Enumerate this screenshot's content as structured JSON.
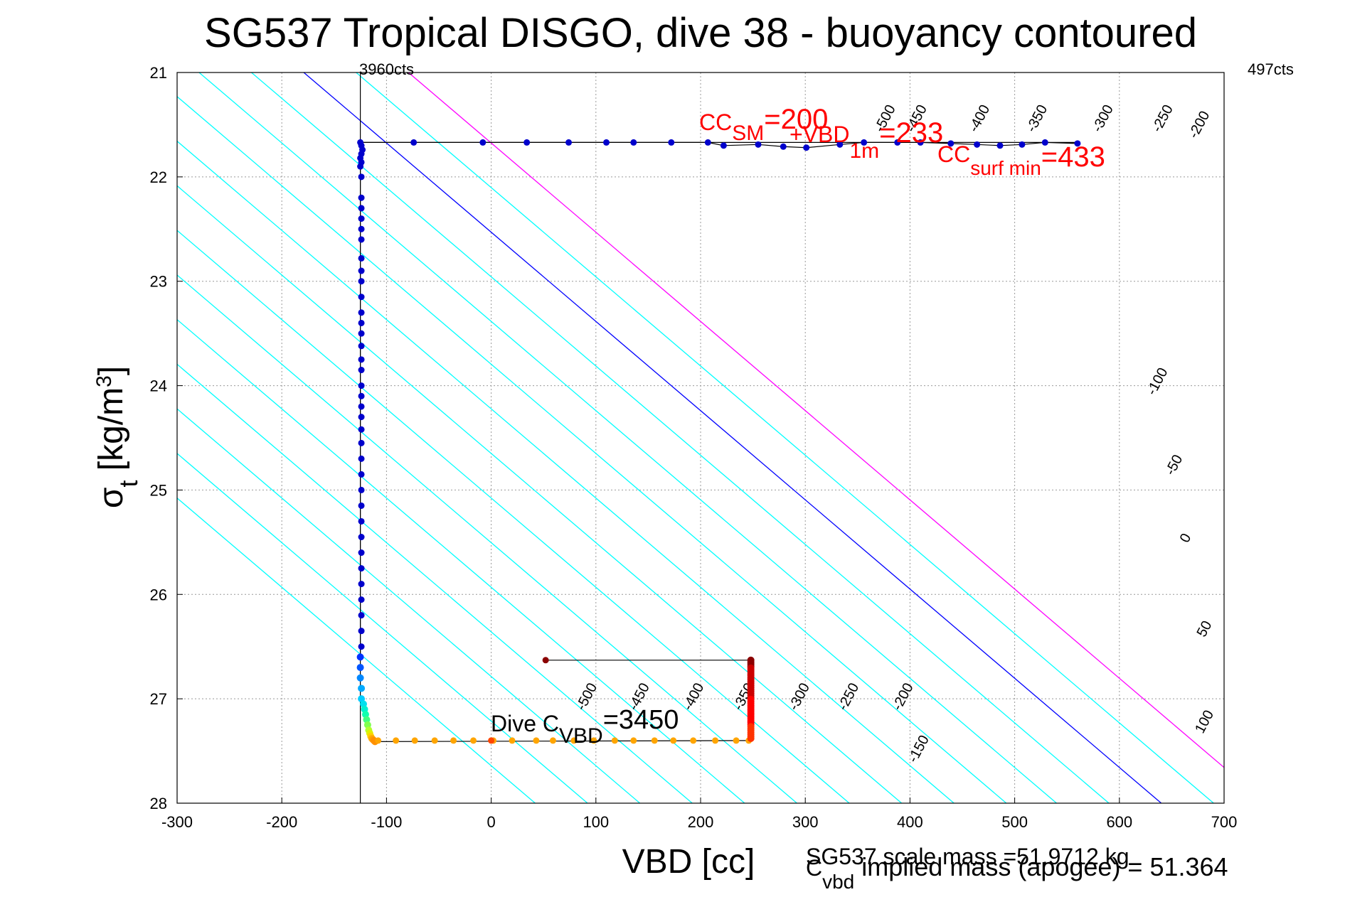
{
  "chart_data": {
    "type": "scatter",
    "title": "SG537 Tropical DISGO, dive 38 - buoyancy contoured",
    "xlabel": "VBD [cc]",
    "ylabel_main": "σ",
    "ylabel_sub": "t",
    "ylabel_units": " [kg/m",
    "ylabel_sup": "3",
    "ylabel_close": "]",
    "xlim": [
      -300,
      700
    ],
    "ylim": [
      21,
      28
    ],
    "y_reversed": true,
    "grid": true,
    "xticks": [
      "-300",
      "-200",
      "-100",
      "0",
      "100",
      "200",
      "300",
      "400",
      "500",
      "600",
      "700"
    ],
    "yticks": [
      "21",
      "22",
      "23",
      "24",
      "25",
      "26",
      "27",
      "28"
    ],
    "top_left_label": "3960cts",
    "top_right_label": "497cts",
    "vline_x": -125,
    "contours": [
      {
        "level": -600,
        "x28": 42,
        "color": "#00ffff"
      },
      {
        "level": -550,
        "x28": 92,
        "color": "#00ffff"
      },
      {
        "level": -500,
        "x28": 142,
        "color": "#00ffff",
        "label": "-500"
      },
      {
        "level": -450,
        "x28": 192,
        "color": "#00ffff",
        "label": "-450"
      },
      {
        "level": -400,
        "x28": 242,
        "color": "#00ffff",
        "label": "-400"
      },
      {
        "level": -350,
        "x28": 292,
        "color": "#00ffff",
        "label": "-350"
      },
      {
        "level": -300,
        "x28": 342,
        "color": "#00ffff",
        "label": "-300"
      },
      {
        "level": -250,
        "x28": 392,
        "color": "#00ffff",
        "label": "-250"
      },
      {
        "level": -200,
        "x28": 442,
        "color": "#00ffff",
        "label": "-200"
      },
      {
        "level": -150,
        "x28": 492,
        "color": "#00ffff",
        "label": "-150"
      },
      {
        "level": -100,
        "x28": 540,
        "color": "#00ffff"
      },
      {
        "level": -50,
        "x28": 590,
        "color": "#00ffff"
      },
      {
        "level": 0,
        "x28": 640,
        "color": "#0000ff"
      },
      {
        "level": 50,
        "x28": 690,
        "color": "#00ffff"
      },
      {
        "level": 100,
        "x28": 740,
        "color": "#ff00ff"
      }
    ],
    "contour_labels": [
      {
        "text": "-500",
        "x": 380,
        "y": 21.46
      },
      {
        "text": "-450",
        "x": 410,
        "y": 21.46
      },
      {
        "text": "-400",
        "x": 470,
        "y": 21.46
      },
      {
        "text": "-350",
        "x": 525,
        "y": 21.46
      },
      {
        "text": "-300",
        "x": 588,
        "y": 21.46
      },
      {
        "text": "-250",
        "x": 645,
        "y": 21.46
      },
      {
        "text": "-200",
        "x": 680,
        "y": 21.52
      },
      {
        "text": "-100",
        "x": 640,
        "y": 23.98
      },
      {
        "text": "-50",
        "x": 656,
        "y": 24.78
      },
      {
        "text": "0",
        "x": 667,
        "y": 25.48
      },
      {
        "text": "50",
        "x": 685,
        "y": 26.35
      },
      {
        "text": "100",
        "x": 685,
        "y": 27.24
      },
      {
        "text": "-500",
        "x": 95,
        "y": 27.0
      },
      {
        "text": "-450",
        "x": 145,
        "y": 27.0
      },
      {
        "text": "-400",
        "x": 197,
        "y": 27.0
      },
      {
        "text": "-350",
        "x": 245,
        "y": 27.0
      },
      {
        "text": "-300",
        "x": 298,
        "y": 27.0
      },
      {
        "text": "-250",
        "x": 345,
        "y": 27.0
      },
      {
        "text": "-200",
        "x": 397,
        "y": 27.0
      },
      {
        "text": "-150",
        "x": 412,
        "y": 27.5
      }
    ],
    "series": [
      {
        "color": "#0000cc",
        "x": [
          -125,
          -124,
          -123,
          -124,
          -125,
          -124,
          -125,
          -124,
          -124,
          -124,
          -124,
          -124,
          -124,
          -124,
          -124,
          -124,
          -124,
          -124,
          -124,
          -124,
          -124,
          -124,
          -124,
          -124,
          -124,
          -124,
          -124,
          -124,
          -124,
          -124,
          -124,
          -124,
          -124,
          -124,
          -124,
          -124,
          -124,
          -124,
          -124,
          -124,
          -124,
          -124
        ],
        "y": [
          21.67,
          21.7,
          21.74,
          21.78,
          21.82,
          21.86,
          21.9,
          22.0,
          22.2,
          22.3,
          22.4,
          22.5,
          22.6,
          22.78,
          22.9,
          23.0,
          23.15,
          23.3,
          23.4,
          23.5,
          23.62,
          23.75,
          23.85,
          24.0,
          24.1,
          24.2,
          24.3,
          24.42,
          24.55,
          24.7,
          24.85,
          25.0,
          25.15,
          25.3,
          25.45,
          25.6,
          25.75,
          25.9,
          26.05,
          26.2,
          26.35,
          26.5
        ]
      },
      {
        "color": "#0000cc",
        "x": [
          -74,
          -8,
          34,
          74,
          110,
          136,
          172,
          207,
          222,
          255,
          279,
          301,
          333,
          356,
          388,
          410,
          439,
          464,
          486,
          507,
          529,
          560
        ],
        "y": [
          21.67,
          21.67,
          21.67,
          21.67,
          21.67,
          21.67,
          21.67,
          21.67,
          21.7,
          21.69,
          21.71,
          21.72,
          21.69,
          21.67,
          21.67,
          21.67,
          21.68,
          21.69,
          21.7,
          21.69,
          21.67,
          21.68
        ]
      }
    ],
    "dive_trace": {
      "x": [
        -125,
        -125,
        -125,
        -124,
        -124,
        -122,
        -121,
        -120,
        -119,
        -118,
        -117,
        -116,
        -115,
        -114,
        -113,
        -112,
        -111
      ],
      "y": [
        26.6,
        26.7,
        26.8,
        26.9,
        27.0,
        27.05,
        27.1,
        27.15,
        27.2,
        27.25,
        27.3,
        27.33,
        27.36,
        27.38,
        27.39,
        27.4,
        27.41
      ],
      "colors": [
        "#0033ff",
        "#0055ff",
        "#0088ff",
        "#00aaff",
        "#00ccff",
        "#00e0ee",
        "#00f0d0",
        "#10ffb0",
        "#40ff80",
        "#80ff50",
        "#b0ff30",
        "#e0f000",
        "#ffd000",
        "#ffb000",
        "#ffa000",
        "#ff9000",
        "#ff9000"
      ]
    },
    "bottom_series": {
      "color": "#ffa500",
      "x": [
        -108,
        -91,
        -73,
        -54,
        -36,
        -17,
        2,
        20,
        43,
        59,
        79,
        98,
        118,
        136,
        156,
        174,
        193,
        214,
        234,
        246
      ],
      "y": [
        27.4,
        27.4,
        27.4,
        27.4,
        27.4,
        27.4,
        27.4,
        27.4,
        27.4,
        27.4,
        27.4,
        27.4,
        27.4,
        27.4,
        27.4,
        27.4,
        27.4,
        27.4,
        27.4,
        27.4
      ]
    },
    "red_column": {
      "x": 248,
      "y_from": 26.63,
      "y_to": 27.38
    },
    "top_segment": {
      "x": [
        52,
        248
      ],
      "y": [
        26.63,
        26.63
      ],
      "start_color": "#8b0000"
    },
    "connector_lines": [
      {
        "x": [
          -125,
          -125
        ],
        "y": [
          21.67,
          26.6
        ]
      },
      {
        "x": [
          -125,
          560
        ],
        "y": [
          21.67,
          21.67
        ]
      },
      {
        "x": [
          -111,
          248
        ],
        "y": [
          27.41,
          27.4
        ]
      },
      {
        "x": [
          248,
          248
        ],
        "y": [
          27.4,
          26.63
        ]
      }
    ],
    "annotations": {
      "cc_sm_main": "CC",
      "cc_sm_sub": "SM",
      "cc_sm_value": "=200",
      "vbd_main": "+VBD",
      "vbd_sub": "1m",
      "vbd_value": "=233",
      "cc_surf_main": "CC",
      "cc_surf_sub": "surf min",
      "cc_surf_value": "=433",
      "dive_main": "Dive C",
      "dive_sub": "VBD",
      "dive_value": "=3450",
      "scale_mass": "SG537 scale mass =51.9712 kg",
      "implied_main": "C",
      "implied_sub": "vbd",
      "implied_text": " implied mass (apogee) = 51.364"
    }
  }
}
